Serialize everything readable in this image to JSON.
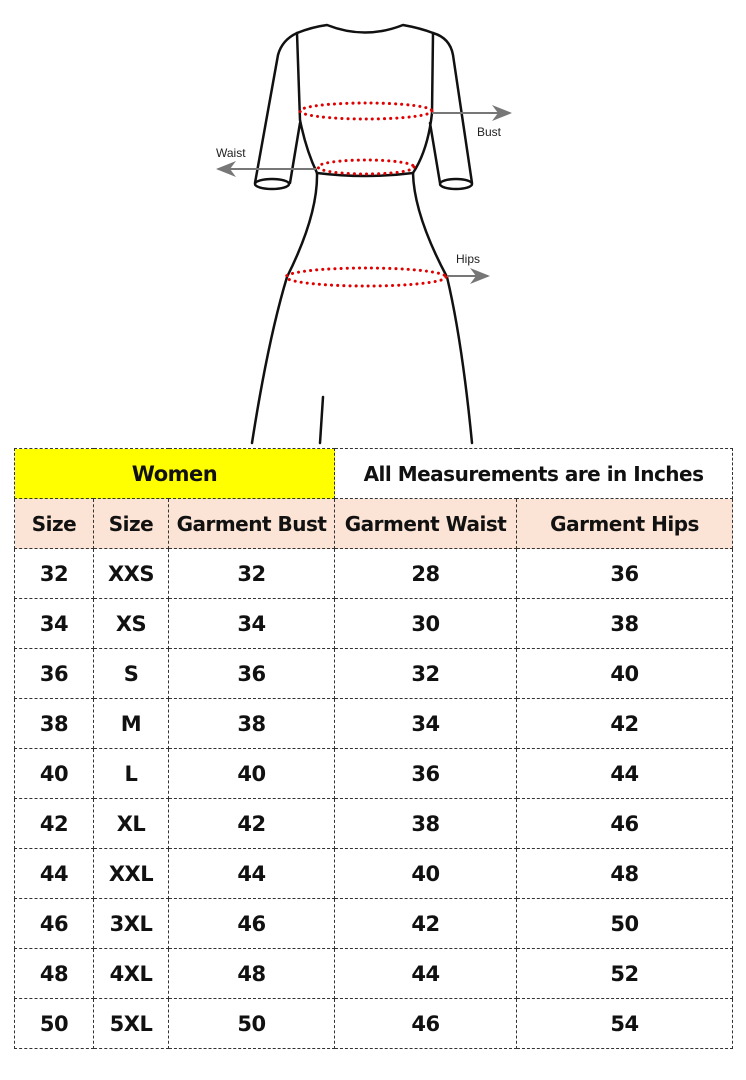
{
  "diagram": {
    "labels": {
      "bust": "Bust",
      "waist": "Waist",
      "hips": "Hips"
    },
    "colors": {
      "measure_dots": "#e00000",
      "arrow": "#777777",
      "outline": "#111111"
    }
  },
  "table": {
    "title": "Women",
    "note": "All Measurements are in Inches",
    "colors": {
      "title_bg": "#ffff00",
      "header_bg": "#fbe4d5"
    },
    "headers": [
      "Size",
      "Size",
      "Garment Bust",
      "Garment Waist",
      "Garment Hips"
    ],
    "rows": [
      [
        "32",
        "XXS",
        "32",
        "28",
        "36"
      ],
      [
        "34",
        "XS",
        "34",
        "30",
        "38"
      ],
      [
        "36",
        "S",
        "36",
        "32",
        "40"
      ],
      [
        "38",
        "M",
        "38",
        "34",
        "42"
      ],
      [
        "40",
        "L",
        "40",
        "36",
        "44"
      ],
      [
        "42",
        "XL",
        "42",
        "38",
        "46"
      ],
      [
        "44",
        "XXL",
        "44",
        "40",
        "48"
      ],
      [
        "46",
        "3XL",
        "46",
        "42",
        "50"
      ],
      [
        "48",
        "4XL",
        "48",
        "44",
        "52"
      ],
      [
        "50",
        "5XL",
        "50",
        "46",
        "54"
      ]
    ]
  }
}
